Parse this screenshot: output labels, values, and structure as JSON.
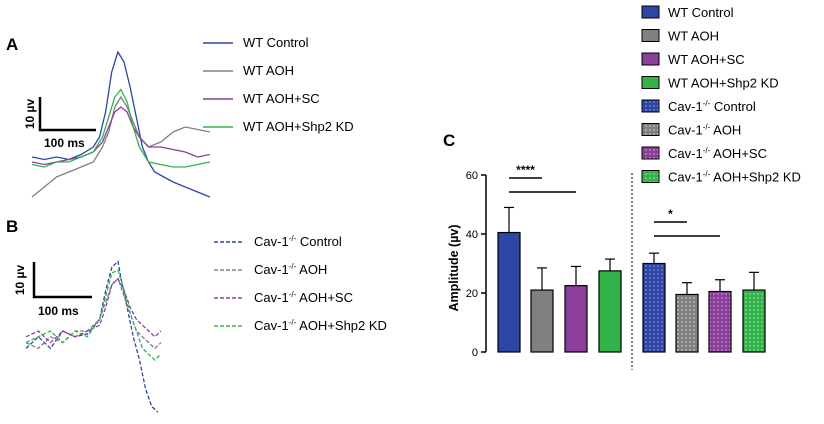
{
  "panels": {
    "a": {
      "letter": "A"
    },
    "b": {
      "letter": "B"
    },
    "c": {
      "letter": "C"
    }
  },
  "colors": {
    "blue": "#2e46a6",
    "gray": "#808080",
    "purple": "#8a3f9a",
    "green": "#33b24a"
  },
  "scalebar": {
    "y_label": "10 µv",
    "x_label": "100 ms"
  },
  "chart_data": [
    {
      "type": "line",
      "panel": "A",
      "title": "",
      "description": "Waveform traces (solid lines), wild-type groups",
      "x_unit": "ms",
      "y_unit": "µv",
      "xlim": [
        0,
        300
      ],
      "ylim": [
        -8,
        26
      ],
      "series": [
        {
          "name": "WT Control",
          "color": "#2e46a6",
          "dash": "solid",
          "points": [
            [
              0,
              3
            ],
            [
              20,
              2.5
            ],
            [
              40,
              3
            ],
            [
              60,
              2.5
            ],
            [
              80,
              3.5
            ],
            [
              100,
              5
            ],
            [
              110,
              7
            ],
            [
              120,
              12
            ],
            [
              130,
              20
            ],
            [
              140,
              24
            ],
            [
              150,
              22
            ],
            [
              160,
              17
            ],
            [
              170,
              11
            ],
            [
              180,
              5
            ],
            [
              190,
              2
            ],
            [
              200,
              0
            ],
            [
              215,
              -1
            ],
            [
              230,
              -2
            ],
            [
              250,
              -3
            ],
            [
              270,
              -4
            ],
            [
              290,
              -5
            ]
          ]
        },
        {
          "name": "WT AOH",
          "color": "#808080",
          "dash": "solid",
          "points": [
            [
              0,
              -5
            ],
            [
              20,
              -3
            ],
            [
              40,
              -1
            ],
            [
              60,
              0
            ],
            [
              80,
              1
            ],
            [
              100,
              2
            ],
            [
              115,
              5
            ],
            [
              125,
              8
            ],
            [
              135,
              13
            ],
            [
              145,
              15
            ],
            [
              155,
              13
            ],
            [
              165,
              10
            ],
            [
              175,
              7
            ],
            [
              190,
              5
            ],
            [
              210,
              6
            ],
            [
              230,
              8
            ],
            [
              250,
              9
            ],
            [
              270,
              8.5
            ],
            [
              290,
              8
            ]
          ]
        },
        {
          "name": "WT AOH+SC",
          "color": "#8a3f9a",
          "dash": "solid",
          "points": [
            [
              0,
              2
            ],
            [
              20,
              1.5
            ],
            [
              40,
              2
            ],
            [
              60,
              2.5
            ],
            [
              80,
              3
            ],
            [
              100,
              4
            ],
            [
              115,
              6
            ],
            [
              125,
              9
            ],
            [
              135,
              12
            ],
            [
              145,
              13
            ],
            [
              155,
              12
            ],
            [
              165,
              9
            ],
            [
              175,
              7
            ],
            [
              190,
              5
            ],
            [
              210,
              5
            ],
            [
              230,
              4.5
            ],
            [
              250,
              4
            ],
            [
              270,
              3
            ],
            [
              290,
              3.5
            ]
          ]
        },
        {
          "name": "WT AOH+Shp2 KD",
          "color": "#33b24a",
          "dash": "solid",
          "points": [
            [
              0,
              1.5
            ],
            [
              20,
              1
            ],
            [
              40,
              2
            ],
            [
              60,
              2
            ],
            [
              80,
              3
            ],
            [
              100,
              4
            ],
            [
              115,
              7
            ],
            [
              125,
              11
            ],
            [
              135,
              15
            ],
            [
              145,
              16.5
            ],
            [
              155,
              14
            ],
            [
              165,
              9
            ],
            [
              175,
              5
            ],
            [
              190,
              2
            ],
            [
              210,
              1.5
            ],
            [
              230,
              1
            ],
            [
              250,
              1
            ],
            [
              270,
              1.5
            ],
            [
              290,
              2
            ]
          ]
        }
      ],
      "legend": {
        "position": "right"
      }
    },
    {
      "type": "line",
      "panel": "B",
      "title": "",
      "description": "Waveform traces (dashed lines), Cav-1-/- groups",
      "x_unit": "ms",
      "y_unit": "µv",
      "xlim": [
        0,
        300
      ],
      "ylim": [
        -14,
        16
      ],
      "series": [
        {
          "name": "Cav-1",
          "suffix": " Control",
          "color": "#2e46a6",
          "dash": "dashed",
          "points": [
            [
              0,
              -2
            ],
            [
              20,
              0
            ],
            [
              40,
              -2
            ],
            [
              60,
              1
            ],
            [
              80,
              0
            ],
            [
              100,
              0.5
            ],
            [
              120,
              3
            ],
            [
              130,
              8
            ],
            [
              140,
              12
            ],
            [
              150,
              13
            ],
            [
              155,
              10
            ],
            [
              165,
              5
            ],
            [
              175,
              0
            ],
            [
              185,
              -4
            ],
            [
              195,
              -9
            ],
            [
              205,
              -12
            ],
            [
              215,
              -13
            ]
          ]
        },
        {
          "name": "Cav-1",
          "suffix": " AOH",
          "color": "#808080",
          "dash": "dashed",
          "points": [
            [
              0,
              -1
            ],
            [
              20,
              -2
            ],
            [
              40,
              0
            ],
            [
              60,
              -1
            ],
            [
              80,
              1
            ],
            [
              100,
              1
            ],
            [
              120,
              3
            ],
            [
              130,
              6
            ],
            [
              140,
              9
            ],
            [
              150,
              10
            ],
            [
              160,
              7
            ],
            [
              170,
              4
            ],
            [
              180,
              1
            ],
            [
              190,
              0
            ],
            [
              200,
              -1
            ],
            [
              210,
              -2
            ],
            [
              220,
              -1
            ]
          ]
        },
        {
          "name": "Cav-1",
          "suffix": " AOH+SC",
          "color": "#8a3f9a",
          "dash": "dashed",
          "points": [
            [
              0,
              0
            ],
            [
              20,
              1
            ],
            [
              40,
              -1
            ],
            [
              60,
              1
            ],
            [
              80,
              0
            ],
            [
              100,
              1
            ],
            [
              120,
              2
            ],
            [
              130,
              5
            ],
            [
              140,
              9
            ],
            [
              150,
              10
            ],
            [
              160,
              8
            ],
            [
              170,
              5
            ],
            [
              180,
              3
            ],
            [
              190,
              2
            ],
            [
              200,
              1
            ],
            [
              210,
              0
            ],
            [
              220,
              1
            ]
          ]
        },
        {
          "name": "Cav-1",
          "suffix": " AOH+Shp2 KD",
          "color": "#33b24a",
          "dash": "dashed",
          "points": [
            [
              0,
              -1
            ],
            [
              20,
              0
            ],
            [
              40,
              1
            ],
            [
              60,
              -1
            ],
            [
              80,
              1
            ],
            [
              100,
              0
            ],
            [
              120,
              3
            ],
            [
              130,
              7
            ],
            [
              140,
              11
            ],
            [
              150,
              11.5
            ],
            [
              160,
              8
            ],
            [
              170,
              4
            ],
            [
              180,
              1
            ],
            [
              190,
              -2
            ],
            [
              200,
              -3
            ],
            [
              210,
              -4
            ],
            [
              220,
              -3
            ]
          ]
        }
      ],
      "legend": {
        "position": "right"
      }
    },
    {
      "type": "bar",
      "panel": "C",
      "title": "",
      "xlabel": "",
      "ylabel": "Amplitude (µv)",
      "ylim": [
        0,
        60
      ],
      "yticks": [
        0,
        20,
        40,
        60
      ],
      "categories": [
        "WT Control",
        "WT AOH",
        "WT AOH+SC",
        "WT AOH+Shp2 KD",
        "Cav-1-/- Control",
        "Cav-1-/- AOH",
        "Cav-1-/- AOH+SC",
        "Cav-1-/- AOH+Shp2 KD"
      ],
      "values": [
        40.5,
        21,
        22.5,
        27.5,
        30,
        19.5,
        20.5,
        21
      ],
      "errors": [
        8.5,
        7.5,
        6.5,
        4,
        3.5,
        4,
        4,
        6
      ],
      "colors": [
        "#2e46a6",
        "#808080",
        "#8a3f9a",
        "#33b24a",
        "#2e46a6",
        "#808080",
        "#8a3f9a",
        "#33b24a"
      ],
      "patterned": [
        false,
        false,
        false,
        false,
        true,
        true,
        true,
        true
      ],
      "significance": [
        {
          "label": "****",
          "from": 0,
          "to": 1,
          "bar_to": 2
        },
        {
          "label": "*",
          "from": 4,
          "to": 5,
          "bar_to": 6
        }
      ],
      "divider_between": [
        3,
        4
      ],
      "legend": [
        {
          "name": "WT Control",
          "suffix": "",
          "color": "#2e46a6",
          "patterned": false
        },
        {
          "name": "WT AOH",
          "suffix": "",
          "color": "#808080",
          "patterned": false
        },
        {
          "name": "WT AOH+SC",
          "suffix": "",
          "color": "#8a3f9a",
          "patterned": false
        },
        {
          "name": "WT AOH+Shp2 KD",
          "suffix": "",
          "color": "#33b24a",
          "patterned": false
        },
        {
          "name": "Cav-1",
          "suffix": " Control",
          "color": "#2e46a6",
          "patterned": true
        },
        {
          "name": "Cav-1",
          "suffix": " AOH",
          "color": "#808080",
          "patterned": true
        },
        {
          "name": "Cav-1",
          "suffix": " AOH+SC",
          "color": "#8a3f9a",
          "patterned": true
        },
        {
          "name": "Cav-1",
          "suffix": " AOH+Shp2 KD",
          "color": "#33b24a",
          "patterned": true
        }
      ],
      "superscript": "-/-"
    }
  ]
}
